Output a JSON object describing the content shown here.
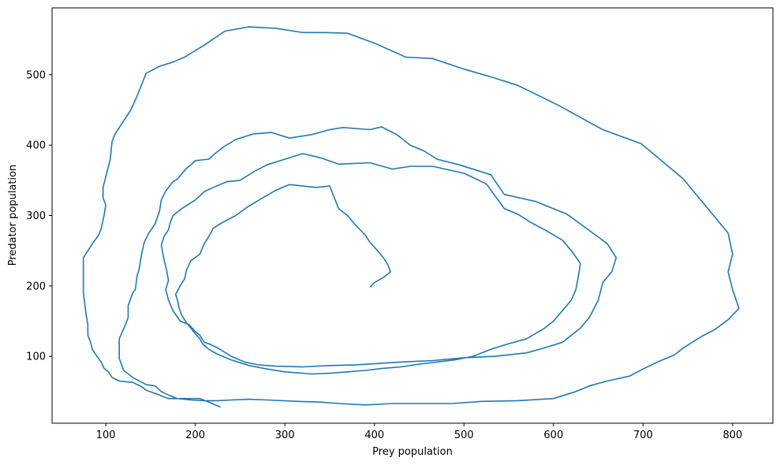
{
  "chart_data": {
    "type": "line",
    "title": "",
    "xlabel": "Prey population",
    "ylabel": "Predator population",
    "xlim": [
      40,
      845
    ],
    "ylim": [
      5,
      595
    ],
    "xticks": [
      100,
      200,
      300,
      400,
      500,
      600,
      700,
      800
    ],
    "yticks": [
      100,
      200,
      300,
      400,
      500
    ],
    "grid": false,
    "legend": "none",
    "series": [
      {
        "color": "#1f77b4",
        "points": [
          [
            228,
            28
          ],
          [
            215,
            35
          ],
          [
            205,
            40
          ],
          [
            185,
            40
          ],
          [
            170,
            40
          ],
          [
            160,
            45
          ],
          [
            145,
            52
          ],
          [
            140,
            57
          ],
          [
            130,
            63
          ],
          [
            115,
            65
          ],
          [
            107,
            70
          ],
          [
            103,
            78
          ],
          [
            98,
            83
          ],
          [
            95,
            92
          ],
          [
            90,
            100
          ],
          [
            85,
            110
          ],
          [
            83,
            120
          ],
          [
            80,
            130
          ],
          [
            80,
            145
          ],
          [
            78,
            160
          ],
          [
            77,
            170
          ],
          [
            75,
            190
          ],
          [
            75,
            205
          ],
          [
            75,
            218
          ],
          [
            75,
            240
          ],
          [
            80,
            250
          ],
          [
            85,
            260
          ],
          [
            92,
            272
          ],
          [
            95,
            282
          ],
          [
            98,
            300
          ],
          [
            100,
            315
          ],
          [
            97,
            325
          ],
          [
            97,
            340
          ],
          [
            103,
            370
          ],
          [
            105,
            380
          ],
          [
            107,
            405
          ],
          [
            110,
            415
          ],
          [
            115,
            425
          ],
          [
            128,
            450
          ],
          [
            135,
            470
          ],
          [
            145,
            502
          ],
          [
            160,
            512
          ],
          [
            175,
            518
          ],
          [
            188,
            525
          ],
          [
            210,
            542
          ],
          [
            233,
            562
          ],
          [
            260,
            568
          ],
          [
            290,
            566
          ],
          [
            320,
            560
          ],
          [
            345,
            560
          ],
          [
            370,
            559
          ],
          [
            400,
            545
          ],
          [
            435,
            525
          ],
          [
            465,
            523
          ],
          [
            500,
            508
          ],
          [
            530,
            497
          ],
          [
            560,
            485
          ],
          [
            605,
            457
          ],
          [
            655,
            422
          ],
          [
            698,
            402
          ],
          [
            745,
            352
          ],
          [
            795,
            275
          ],
          [
            800,
            245
          ],
          [
            795,
            220
          ],
          [
            800,
            195
          ],
          [
            807,
            168
          ],
          [
            795,
            152
          ],
          [
            780,
            138
          ],
          [
            765,
            128
          ],
          [
            745,
            112
          ],
          [
            735,
            102
          ],
          [
            718,
            93
          ],
          [
            700,
            82
          ],
          [
            685,
            72
          ],
          [
            660,
            65
          ],
          [
            640,
            58
          ],
          [
            625,
            50
          ],
          [
            600,
            40
          ],
          [
            560,
            37
          ],
          [
            520,
            36
          ],
          [
            487,
            33
          ],
          [
            450,
            33
          ],
          [
            420,
            33
          ],
          [
            390,
            31
          ],
          [
            360,
            33
          ],
          [
            340,
            35
          ],
          [
            315,
            36
          ],
          [
            280,
            38
          ],
          [
            260,
            39
          ],
          [
            240,
            38
          ],
          [
            225,
            37
          ],
          [
            210,
            37
          ],
          [
            195,
            38
          ],
          [
            180,
            40
          ],
          [
            170,
            45
          ],
          [
            162,
            50
          ],
          [
            155,
            58
          ],
          [
            145,
            60
          ],
          [
            130,
            70
          ],
          [
            120,
            80
          ],
          [
            115,
            97
          ],
          [
            115,
            107
          ],
          [
            115,
            125
          ],
          [
            122,
            145
          ],
          [
            125,
            155
          ],
          [
            125,
            172
          ],
          [
            130,
            190
          ],
          [
            133,
            195
          ],
          [
            135,
            215
          ],
          [
            137,
            222
          ],
          [
            140,
            245
          ],
          [
            143,
            262
          ],
          [
            148,
            275
          ],
          [
            155,
            288
          ],
          [
            160,
            306
          ],
          [
            162,
            322
          ],
          [
            167,
            335
          ],
          [
            175,
            348
          ],
          [
            180,
            352
          ],
          [
            190,
            367
          ],
          [
            195,
            372
          ],
          [
            200,
            378
          ],
          [
            215,
            380
          ],
          [
            222,
            388
          ],
          [
            232,
            398
          ],
          [
            245,
            408
          ],
          [
            265,
            416
          ],
          [
            285,
            418
          ],
          [
            305,
            410
          ],
          [
            330,
            415
          ],
          [
            350,
            422
          ],
          [
            365,
            425
          ],
          [
            395,
            422
          ],
          [
            408,
            426
          ],
          [
            425,
            415
          ],
          [
            440,
            400
          ],
          [
            455,
            392
          ],
          [
            470,
            380
          ],
          [
            495,
            372
          ],
          [
            530,
            358
          ],
          [
            545,
            330
          ],
          [
            580,
            320
          ],
          [
            615,
            302
          ],
          [
            660,
            260
          ],
          [
            670,
            240
          ],
          [
            665,
            220
          ],
          [
            655,
            205
          ],
          [
            650,
            180
          ],
          [
            640,
            155
          ],
          [
            630,
            140
          ],
          [
            610,
            120
          ],
          [
            590,
            112
          ],
          [
            570,
            105
          ],
          [
            535,
            100
          ],
          [
            500,
            98
          ],
          [
            465,
            94
          ],
          [
            430,
            92
          ],
          [
            380,
            88
          ],
          [
            350,
            87
          ],
          [
            320,
            85
          ],
          [
            290,
            86
          ],
          [
            270,
            88
          ],
          [
            255,
            92
          ],
          [
            240,
            100
          ],
          [
            225,
            112
          ],
          [
            215,
            118
          ],
          [
            210,
            120
          ],
          [
            205,
            130
          ],
          [
            200,
            135
          ],
          [
            193,
            145
          ],
          [
            183,
            150
          ],
          [
            175,
            165
          ],
          [
            170,
            180
          ],
          [
            167,
            195
          ],
          [
            170,
            208
          ],
          [
            168,
            222
          ],
          [
            165,
            238
          ],
          [
            162,
            258
          ],
          [
            165,
            270
          ],
          [
            170,
            280
          ],
          [
            172,
            290
          ],
          [
            175,
            300
          ],
          [
            185,
            310
          ],
          [
            200,
            322
          ],
          [
            210,
            334
          ],
          [
            220,
            340
          ],
          [
            235,
            348
          ],
          [
            250,
            350
          ],
          [
            265,
            362
          ],
          [
            280,
            372
          ],
          [
            300,
            380
          ],
          [
            312,
            385
          ],
          [
            320,
            388
          ],
          [
            340,
            382
          ],
          [
            360,
            373
          ],
          [
            395,
            375
          ],
          [
            420,
            366
          ],
          [
            440,
            370
          ],
          [
            465,
            370
          ],
          [
            500,
            360
          ],
          [
            525,
            345
          ],
          [
            545,
            310
          ],
          [
            560,
            302
          ],
          [
            575,
            290
          ],
          [
            590,
            280
          ],
          [
            610,
            265
          ],
          [
            620,
            250
          ],
          [
            630,
            232
          ],
          [
            628,
            215
          ],
          [
            625,
            195
          ],
          [
            620,
            180
          ],
          [
            610,
            165
          ],
          [
            600,
            150
          ],
          [
            590,
            140
          ],
          [
            570,
            125
          ],
          [
            550,
            118
          ],
          [
            530,
            110
          ],
          [
            510,
            100
          ],
          [
            490,
            95
          ],
          [
            470,
            92
          ],
          [
            450,
            89
          ],
          [
            430,
            85
          ],
          [
            410,
            83
          ],
          [
            390,
            80
          ],
          [
            370,
            78
          ],
          [
            350,
            76
          ],
          [
            330,
            75
          ],
          [
            300,
            78
          ],
          [
            280,
            82
          ],
          [
            260,
            87
          ],
          [
            240,
            95
          ],
          [
            225,
            103
          ],
          [
            215,
            110
          ],
          [
            208,
            118
          ],
          [
            205,
            125
          ],
          [
            200,
            132
          ],
          [
            195,
            140
          ],
          [
            190,
            148
          ],
          [
            185,
            158
          ],
          [
            182,
            168
          ],
          [
            180,
            180
          ],
          [
            178,
            188
          ],
          [
            183,
            200
          ],
          [
            188,
            210
          ],
          [
            190,
            222
          ],
          [
            195,
            236
          ],
          [
            205,
            245
          ],
          [
            210,
            260
          ],
          [
            215,
            270
          ],
          [
            220,
            282
          ],
          [
            230,
            290
          ],
          [
            245,
            300
          ],
          [
            258,
            312
          ],
          [
            275,
            325
          ],
          [
            290,
            336
          ],
          [
            305,
            344
          ],
          [
            335,
            340
          ],
          [
            350,
            342
          ],
          [
            360,
            310
          ],
          [
            370,
            300
          ],
          [
            380,
            285
          ],
          [
            390,
            272
          ],
          [
            395,
            262
          ],
          [
            400,
            255
          ],
          [
            405,
            248
          ],
          [
            410,
            240
          ],
          [
            415,
            230
          ],
          [
            418,
            220
          ],
          [
            410,
            212
          ],
          [
            400,
            205
          ],
          [
            395,
            198
          ]
        ]
      }
    ]
  }
}
